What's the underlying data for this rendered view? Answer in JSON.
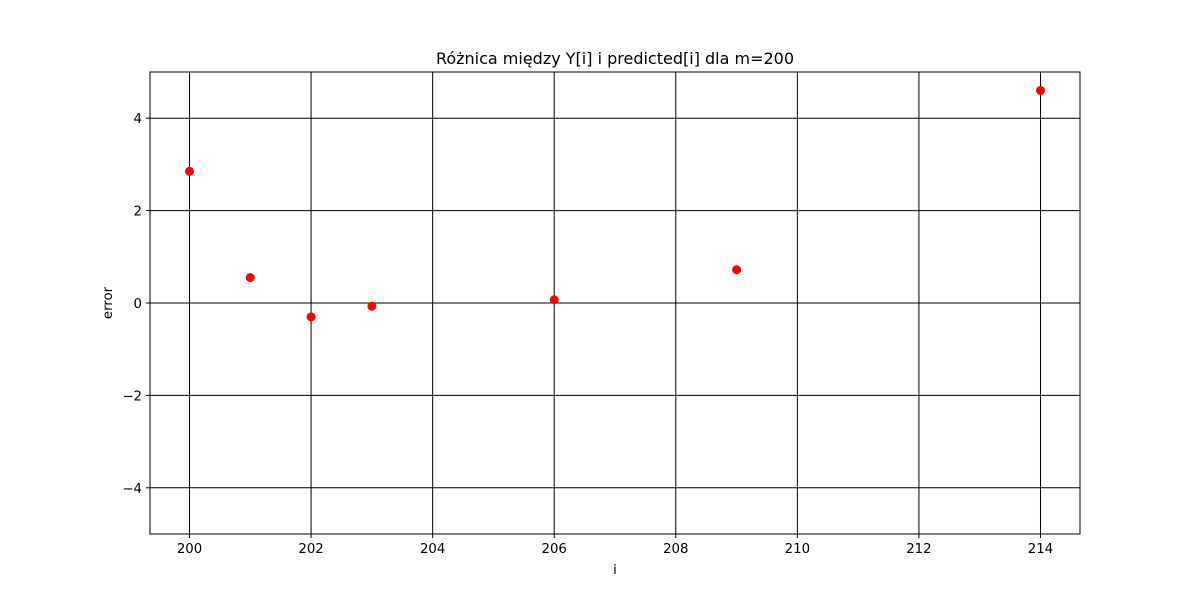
{
  "chart_data": {
    "type": "scatter",
    "title": "Różnica między Y[i] i predicted[i] dla m=200",
    "xlabel": "i",
    "ylabel": "error",
    "xlim": [
      199.35,
      214.65
    ],
    "ylim": [
      -5,
      5
    ],
    "xticks": [
      200,
      202,
      204,
      206,
      208,
      210,
      212,
      214
    ],
    "yticks": [
      -4,
      -2,
      0,
      2,
      4
    ],
    "xtick_labels": [
      "200",
      "202",
      "204",
      "206",
      "208",
      "210",
      "212",
      "214"
    ],
    "ytick_labels": [
      "−4",
      "−2",
      "0",
      "2",
      "4"
    ],
    "grid": true,
    "grid_color": "#000000",
    "marker_color": "#ff0000",
    "x": [
      200,
      201,
      202,
      203,
      206,
      209,
      214
    ],
    "y": [
      2.85,
      0.55,
      -0.3,
      -0.07,
      0.07,
      0.72,
      4.6
    ]
  }
}
